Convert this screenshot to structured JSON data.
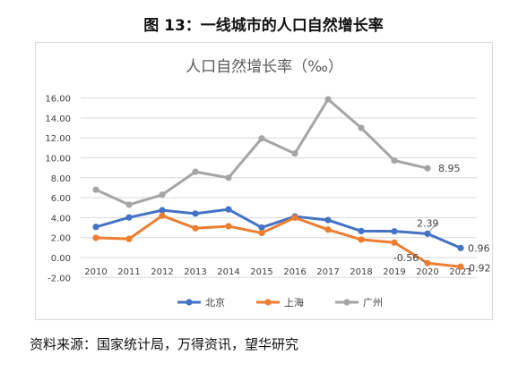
{
  "figure_title": "图 13：一线城市的人口自然增长率",
  "source": "资料来源：国家统计局，万得资讯，望华研究",
  "chart_data": {
    "type": "line",
    "title": "人口自然增长率（‰）",
    "categories": [
      "2010",
      "2011",
      "2012",
      "2013",
      "2014",
      "2015",
      "2016",
      "2017",
      "2018",
      "2019",
      "2020",
      "2021"
    ],
    "ylim": [
      -2,
      16
    ],
    "yticks": [
      "16.00",
      "14.00",
      "12.00",
      "10.00",
      "8.00",
      "6.00",
      "4.00",
      "2.00",
      "0.00",
      "-2.00"
    ],
    "grid": true,
    "legend_position": "bottom",
    "series": [
      {
        "name": "北京",
        "color": "#4472c4",
        "values": [
          3.07,
          4.02,
          4.74,
          4.41,
          4.83,
          3.01,
          4.12,
          3.76,
          2.66,
          2.63,
          2.39,
          0.96
        ]
      },
      {
        "name": "上海",
        "color": "#ed7d31",
        "values": [
          1.98,
          1.87,
          4.2,
          2.94,
          3.14,
          2.46,
          4.0,
          2.8,
          1.8,
          1.5,
          -0.56,
          -0.92
        ]
      },
      {
        "name": "广州",
        "color": "#a5a5a5",
        "values": [
          6.8,
          5.3,
          6.3,
          8.6,
          8.0,
          11.95,
          10.43,
          15.87,
          13.0,
          9.73,
          8.95,
          null
        ]
      }
    ],
    "data_labels": [
      {
        "series": 2,
        "index": 10,
        "text": "8.95"
      },
      {
        "series": 0,
        "index": 10,
        "text": "2.39"
      },
      {
        "series": 0,
        "index": 11,
        "text": "0.96"
      },
      {
        "series": 1,
        "index": 10,
        "text": "-0.56"
      },
      {
        "series": 1,
        "index": 11,
        "text": "-0.92"
      }
    ]
  }
}
